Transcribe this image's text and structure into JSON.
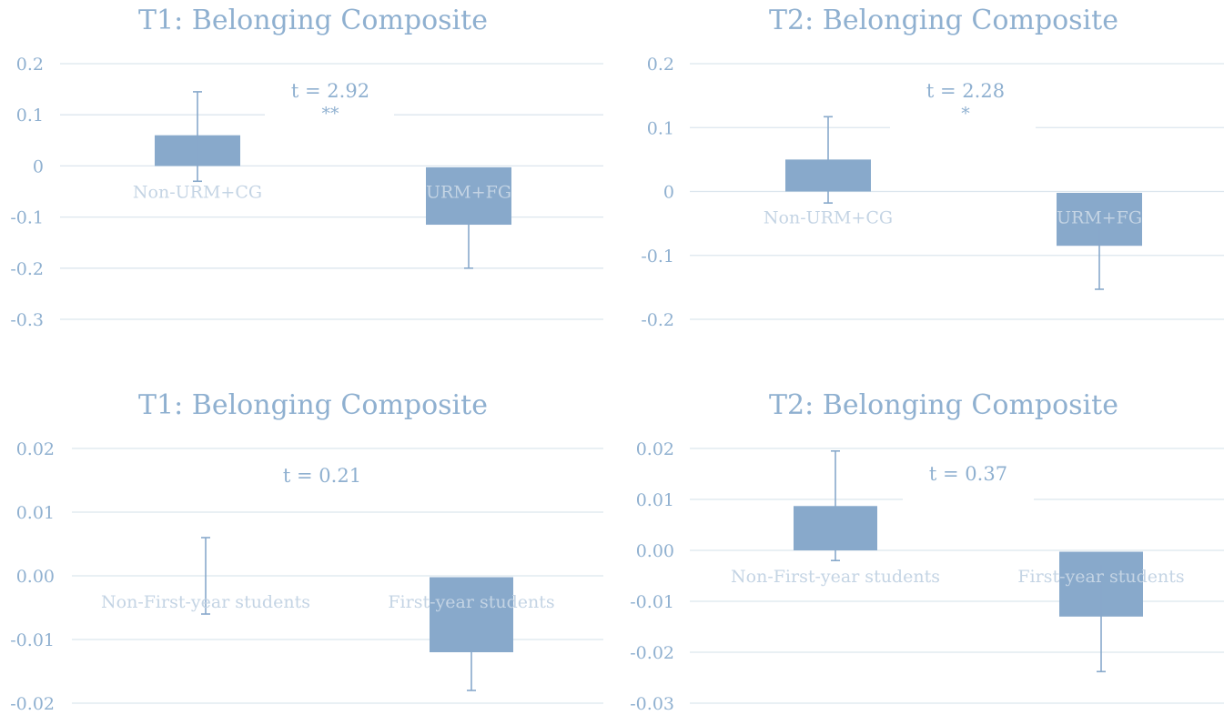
{
  "style": {
    "bar_color": "#88a9cb",
    "text_color": "#8fb0d0",
    "label_color": "#c4d4e4",
    "grid_color": "#dce6ee"
  },
  "chart_data": [
    {
      "type": "bar",
      "title": "T1: Belonging Composite",
      "categories": [
        "Non-URM+CG",
        "URM+FG"
      ],
      "values": [
        0.06,
        -0.115
      ],
      "error_low": [
        -0.03,
        -0.2
      ],
      "error_high": [
        0.145,
        -0.07
      ],
      "ylim": [
        -0.3,
        0.2
      ],
      "ticks": [
        "0.2",
        "0.1",
        "0",
        "-0.1",
        "-0.2",
        "-0.3"
      ],
      "annotation": [
        "t = 2.92",
        "**"
      ],
      "grid": true
    },
    {
      "type": "bar",
      "title": "T2: Belonging Composite",
      "categories": [
        "Non-URM+CG",
        "URM+FG"
      ],
      "values": [
        0.05,
        -0.085
      ],
      "error_low": [
        -0.018,
        -0.153
      ],
      "error_high": [
        0.117,
        -0.04
      ],
      "ylim": [
        -0.2,
        0.2
      ],
      "ticks": [
        "0.2",
        "0.1",
        "0",
        "-0.1",
        "-0.2"
      ],
      "annotation": [
        "t = 2.28",
        "*"
      ],
      "grid": true
    },
    {
      "type": "bar",
      "title": "T1: Belonging Composite",
      "categories": [
        "Non-First-year students",
        "First-year students"
      ],
      "values": [
        0.0,
        -0.012
      ],
      "error_low": [
        -0.006,
        -0.018
      ],
      "error_high": [
        0.006,
        -0.006
      ],
      "ylim": [
        -0.02,
        0.02
      ],
      "ticks": [
        "0.02",
        "0.01",
        "0.00",
        "-0.01",
        "-0.02"
      ],
      "annotation": [
        "t = 0.21"
      ],
      "grid": true
    },
    {
      "type": "bar",
      "title": "T2: Belonging Composite",
      "categories": [
        "Non-First-year students",
        "First-year students"
      ],
      "values": [
        0.0087,
        -0.013
      ],
      "error_low": [
        -0.002,
        -0.0238
      ],
      "error_high": [
        0.0195,
        -0.003
      ],
      "ylim": [
        -0.03,
        0.02
      ],
      "ticks": [
        "0.02",
        "0.01",
        "0.00",
        "-0.01",
        "-0.02",
        "-0.03"
      ],
      "annotation": [
        "t = 0.37"
      ],
      "grid": true
    }
  ]
}
